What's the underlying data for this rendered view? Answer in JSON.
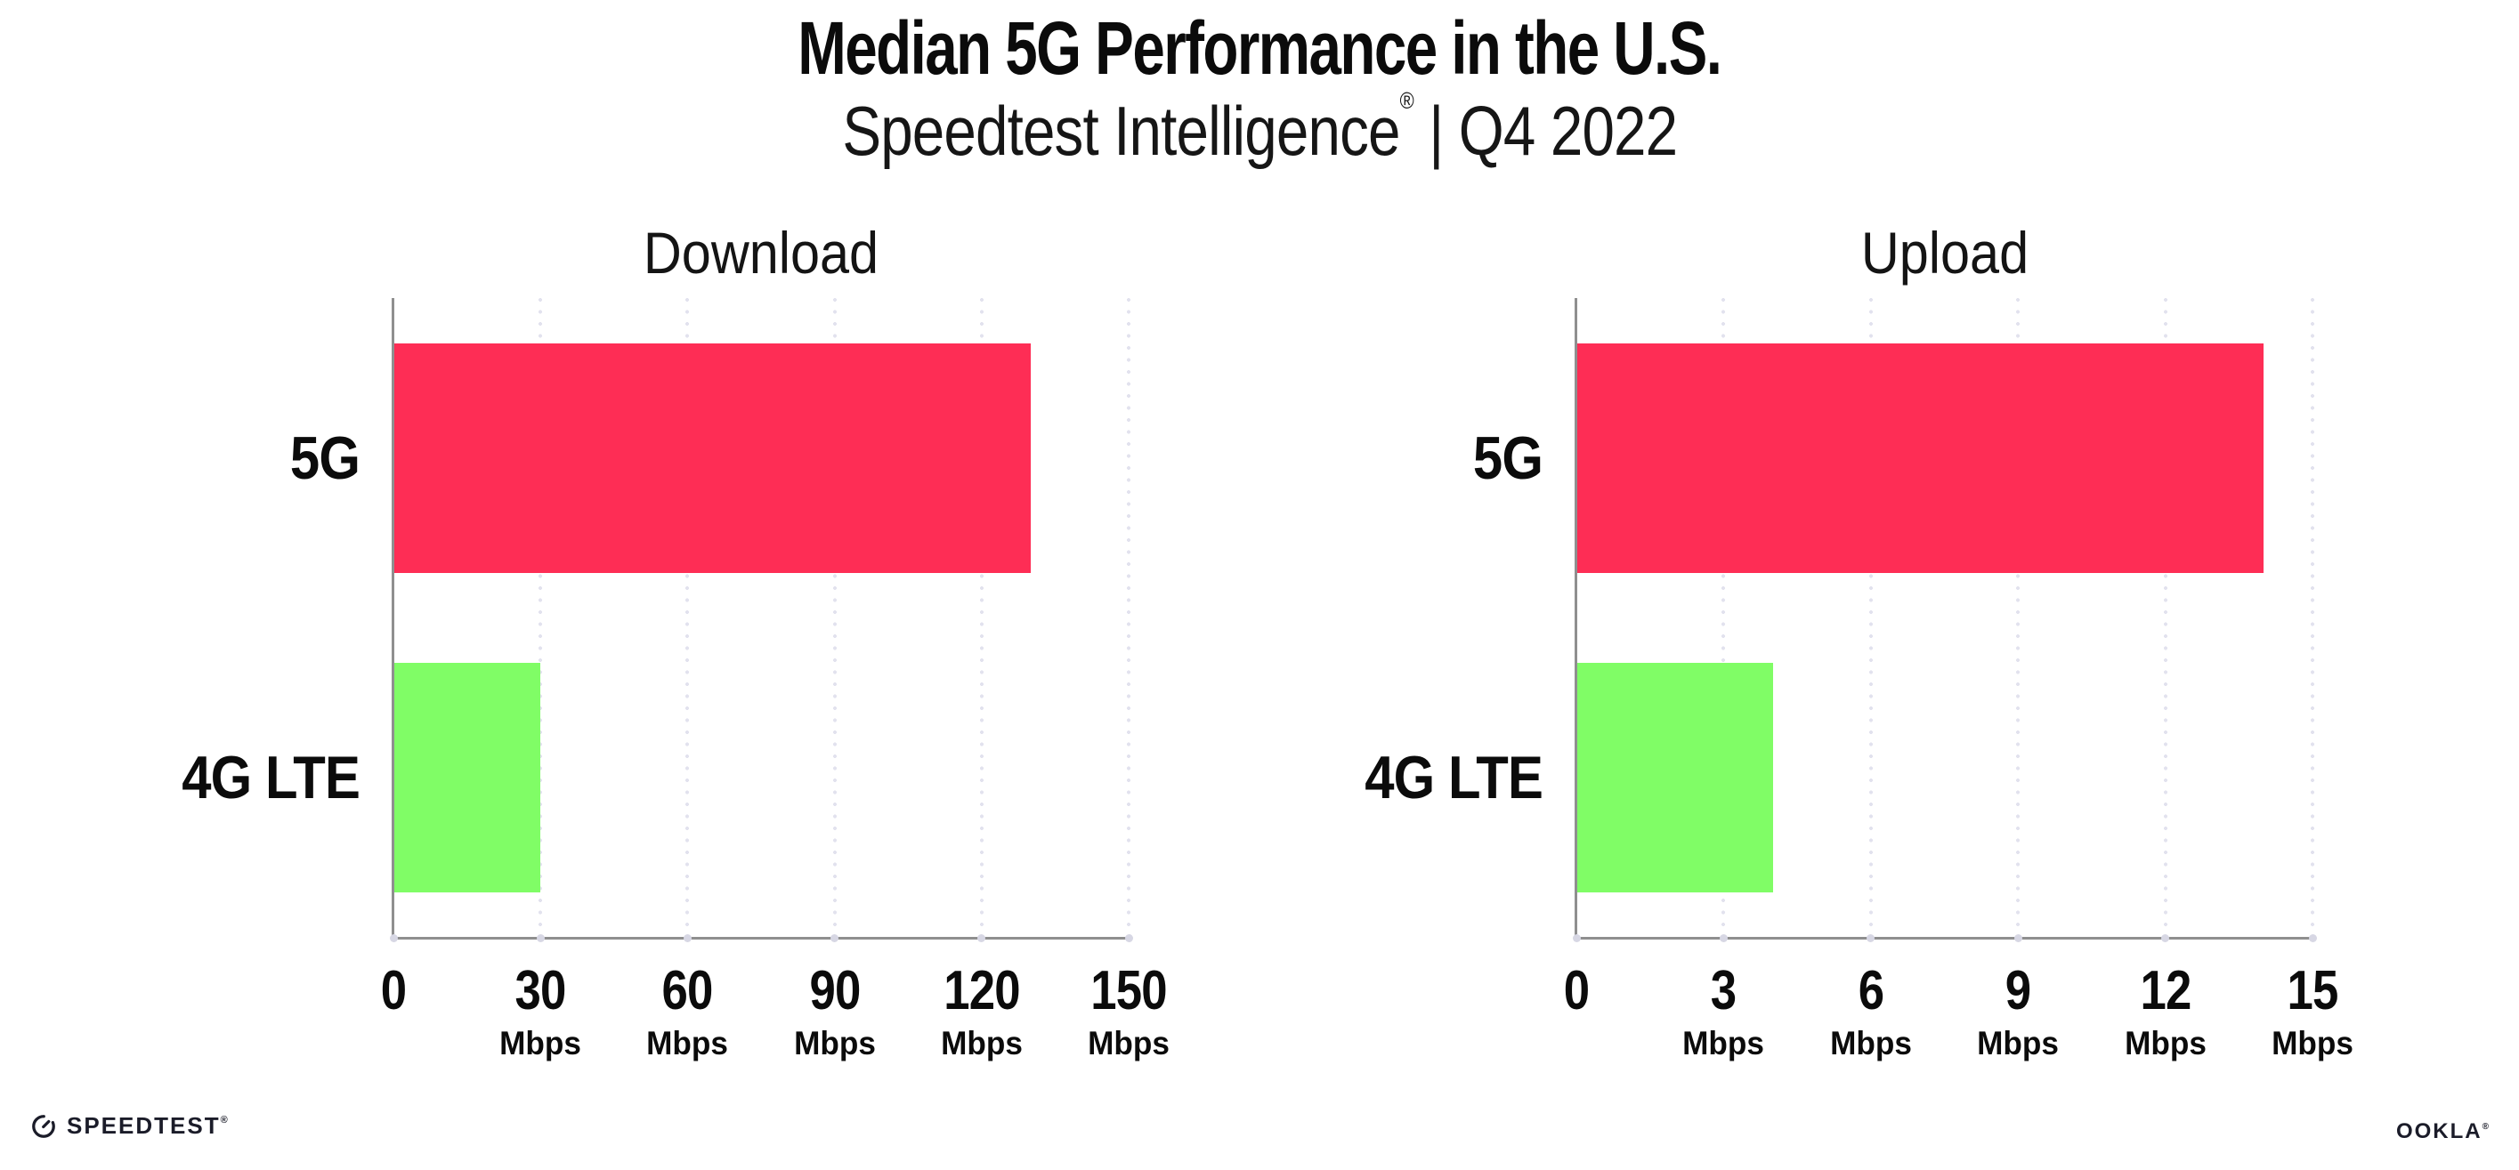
{
  "header": {
    "title": "Median 5G Performance in the U.S.",
    "subtitle_brand": "Speedtest Intelligence",
    "subtitle_reg": "®",
    "subtitle_rest": " | Q4 2022"
  },
  "chart_data": [
    {
      "type": "bar",
      "orientation": "horizontal",
      "title": "Download",
      "categories": [
        "5G",
        "4G LTE"
      ],
      "values": [
        130,
        30
      ],
      "unit": "Mbps",
      "xlim": [
        0,
        150
      ],
      "xticks": [
        0,
        30,
        60,
        90,
        120,
        150
      ],
      "bar_colors": [
        "#fe2d55",
        "#80fd66"
      ],
      "grid": "dotted-vertical",
      "legend": "none"
    },
    {
      "type": "bar",
      "orientation": "horizontal",
      "title": "Upload",
      "categories": [
        "5G",
        "4G LTE"
      ],
      "values": [
        14,
        4
      ],
      "unit": "Mbps",
      "xlim": [
        0,
        15
      ],
      "xticks": [
        0,
        3,
        6,
        9,
        12,
        15
      ],
      "bar_colors": [
        "#fe2d55",
        "#80fd66"
      ],
      "grid": "dotted-vertical",
      "legend": "none"
    }
  ],
  "footer": {
    "speedtest_label": "SPEEDTEST",
    "speedtest_reg": "®",
    "ookla_label": "OOKLA",
    "ookla_reg": "®"
  },
  "colors": {
    "bar_5g": "#fe2d55",
    "bar_4g_lte": "#80fd66",
    "axis": "#8f8f8f",
    "grid_dots": "#e2e2ee",
    "tick_dots": "#d7d7e4",
    "logo_ink": "#1b1c29",
    "text": "#111111"
  }
}
